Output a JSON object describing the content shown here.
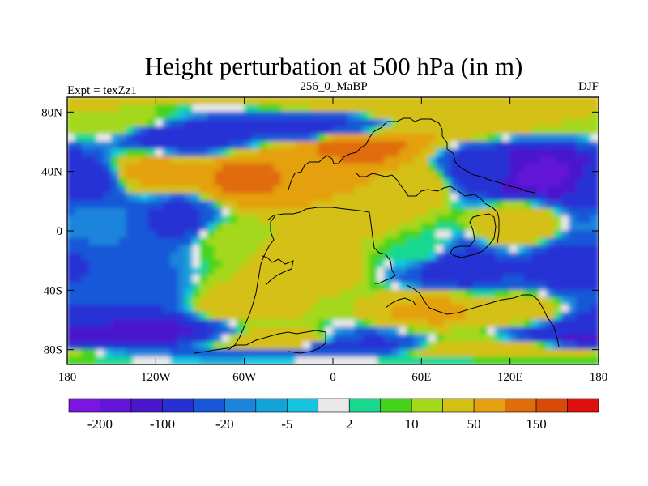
{
  "chart_data": {
    "type": "heatmap",
    "title": "Height perturbation at 500 hPa (in m)",
    "subtitle_left": "Expt = texZz1",
    "subtitle_center": "256_0_MaBP",
    "subtitle_right": "DJF",
    "x_ticks": [
      "180",
      "120W",
      "60W",
      "0",
      "60E",
      "120E",
      "180"
    ],
    "x_tick_values": [
      -180,
      -120,
      -60,
      0,
      60,
      120,
      180
    ],
    "y_ticks": [
      "80N",
      "40N",
      "0",
      "40S",
      "80S"
    ],
    "y_tick_values": [
      80,
      40,
      0,
      -40,
      -80
    ],
    "xlim": [
      -180,
      180
    ],
    "ylim": [
      -90,
      90
    ],
    "colorbar": {
      "levels": [
        -200,
        -150,
        -100,
        -50,
        -20,
        -10,
        -5,
        -2,
        2,
        5,
        10,
        20,
        50,
        100,
        150,
        200
      ],
      "labels": [
        "-200",
        "-100",
        "-20",
        "-5",
        "2",
        "10",
        "50",
        "150"
      ],
      "colors": [
        "#7a16e0",
        "#6414d8",
        "#4a16cc",
        "#2830d4",
        "#1858d8",
        "#1c84dc",
        "#12a4d8",
        "#16c4e0",
        "#e8e8e8",
        "#18d890",
        "#44d41c",
        "#a4d81a",
        "#d4c014",
        "#e4a010",
        "#e06c0c",
        "#d84a08",
        "#e01010"
      ]
    },
    "field_features": [
      {
        "lon": -100,
        "lat": 65,
        "value": -95
      },
      {
        "lon": -150,
        "lat": 72,
        "value": 20
      },
      {
        "lon": -20,
        "lat": 70,
        "value": -55
      },
      {
        "lon": 90,
        "lat": 78,
        "value": 45
      },
      {
        "lon": -60,
        "lat": 35,
        "value": 110
      },
      {
        "lon": -10,
        "lat": 45,
        "value": 95
      },
      {
        "lon": 15,
        "lat": 55,
        "value": 120
      },
      {
        "lon": 50,
        "lat": 30,
        "value": 40
      },
      {
        "lon": 110,
        "lat": 40,
        "value": -90
      },
      {
        "lon": 140,
        "lat": 38,
        "value": -170
      },
      {
        "lon": -175,
        "lat": 35,
        "value": -90
      },
      {
        "lon": -120,
        "lat": 40,
        "value": 60
      },
      {
        "lon": -105,
        "lat": 8,
        "value": -60
      },
      {
        "lon": -160,
        "lat": 5,
        "value": -15
      },
      {
        "lon": 30,
        "lat": 10,
        "value": 25
      },
      {
        "lon": -20,
        "lat": -20,
        "value": 45
      },
      {
        "lon": -70,
        "lat": -5,
        "value": 12
      },
      {
        "lon": 60,
        "lat": -12,
        "value": 5
      },
      {
        "lon": 85,
        "lat": -25,
        "value": -80
      },
      {
        "lon": 160,
        "lat": -25,
        "value": -75
      },
      {
        "lon": 125,
        "lat": 5,
        "value": 45
      },
      {
        "lon": -150,
        "lat": -40,
        "value": -40
      },
      {
        "lon": -60,
        "lat": -50,
        "value": 30
      },
      {
        "lon": -130,
        "lat": -68,
        "value": -110
      },
      {
        "lon": -175,
        "lat": -70,
        "value": -120
      },
      {
        "lon": -30,
        "lat": -75,
        "value": 40
      },
      {
        "lon": 10,
        "lat": -78,
        "value": -70
      },
      {
        "lon": 70,
        "lat": -55,
        "value": 55
      },
      {
        "lon": 130,
        "lat": -55,
        "value": 30
      },
      {
        "lon": 175,
        "lat": -65,
        "value": -70
      },
      {
        "lon": 100,
        "lat": -80,
        "value": 35
      }
    ]
  }
}
